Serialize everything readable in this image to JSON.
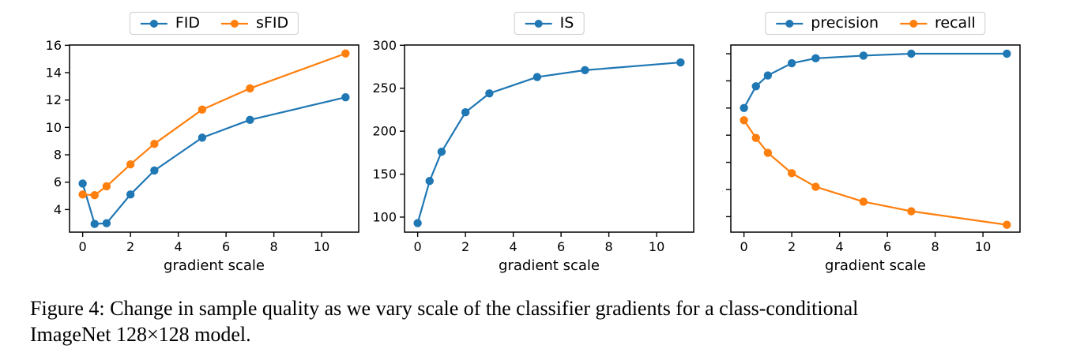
{
  "figure": {
    "caption_lines": [
      "Figure 4: Change in sample quality as we vary scale of the classifier gradients for a class-conditional",
      "ImageNet 128×128 model."
    ]
  },
  "colors": {
    "series_blue": "#1f77b4",
    "series_orange": "#ff7f0e",
    "axis_black": "#000000",
    "legend_border": "#cccccc"
  },
  "chart_data": [
    {
      "type": "line",
      "title": "",
      "xlabel": "gradient scale",
      "ylabel": "",
      "x": [
        0,
        0.5,
        1,
        2,
        3,
        5,
        7,
        11
      ],
      "series": [
        {
          "name": "FID",
          "color": "#1f77b4",
          "values": [
            5.9,
            2.95,
            3.0,
            5.1,
            6.85,
            9.25,
            10.55,
            12.2
          ]
        },
        {
          "name": "sFID",
          "color": "#ff7f0e",
          "values": [
            5.1,
            5.05,
            5.7,
            7.3,
            8.8,
            11.3,
            12.85,
            15.4
          ]
        }
      ],
      "xlim": [
        -0.55,
        11.55
      ],
      "ylim": [
        2.35,
        16.02
      ],
      "xticks": [
        0,
        2,
        4,
        6,
        8,
        10
      ],
      "yticks": [
        4,
        6,
        8,
        10,
        12,
        14,
        16
      ],
      "legend_position": "upper center",
      "grid": false
    },
    {
      "type": "line",
      "title": "",
      "xlabel": "gradient scale",
      "ylabel": "",
      "x": [
        0,
        0.5,
        1,
        2,
        3,
        5,
        7,
        11
      ],
      "series": [
        {
          "name": "IS",
          "color": "#1f77b4",
          "values": [
            93,
            142,
            176,
            222,
            244,
            263,
            271,
            280
          ]
        }
      ],
      "xlim": [
        -0.55,
        11.55
      ],
      "ylim": [
        82.5,
        300.3
      ],
      "xticks": [
        0,
        2,
        4,
        6,
        8,
        10
      ],
      "yticks": [
        100,
        150,
        200,
        250,
        300
      ],
      "legend_position": "upper center",
      "grid": false
    },
    {
      "type": "line",
      "title": "",
      "xlabel": "gradient scale",
      "ylabel": "",
      "x": [
        0,
        0.5,
        1,
        2,
        3,
        5,
        7,
        11
      ],
      "series": [
        {
          "name": "precision",
          "color": "#1f77b4",
          "values": [
            0.7,
            0.78,
            0.82,
            0.865,
            0.883,
            0.893,
            0.9,
            0.9
          ]
        },
        {
          "name": "recall",
          "color": "#ff7f0e",
          "values": [
            0.655,
            0.59,
            0.535,
            0.46,
            0.41,
            0.355,
            0.32,
            0.27
          ]
        }
      ],
      "xlim": [
        -0.55,
        11.55
      ],
      "ylim": [
        0.243,
        0.932
      ],
      "xticks": [
        0,
        2,
        4,
        6,
        8,
        10
      ],
      "yticks": [
        0.3,
        0.4,
        0.5,
        0.6,
        0.7,
        0.8,
        0.9
      ],
      "legend_position": "upper center",
      "grid": false
    }
  ]
}
